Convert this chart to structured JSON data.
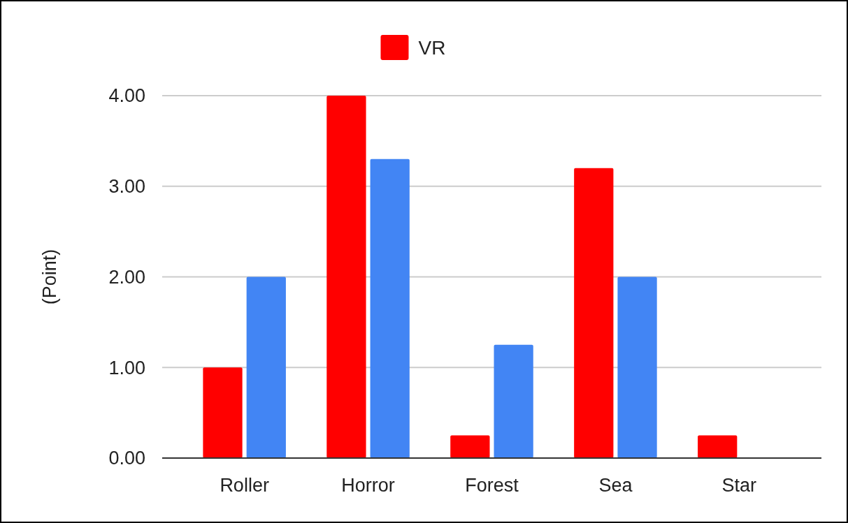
{
  "chart_data": {
    "type": "bar",
    "ylabel": "(Point)",
    "categories": [
      "Roller",
      "Horror",
      "Forest",
      "Sea",
      "Star"
    ],
    "series": [
      {
        "name": "VR",
        "color": "#ff0000",
        "values": [
          1.0,
          4.0,
          0.25,
          3.2,
          0.25
        ]
      },
      {
        "color": "#4285f4",
        "values": [
          2.0,
          3.3,
          1.25,
          2.0,
          0
        ]
      }
    ],
    "ylim": [
      0,
      4
    ],
    "yticks": [
      {
        "value": 0,
        "label": "0.00"
      },
      {
        "value": 1,
        "label": "1.00"
      },
      {
        "value": 2,
        "label": "2.00"
      },
      {
        "value": 3,
        "label": "3.00"
      },
      {
        "value": 4,
        "label": "4.00"
      }
    ],
    "grid": "y",
    "legend": "top"
  }
}
